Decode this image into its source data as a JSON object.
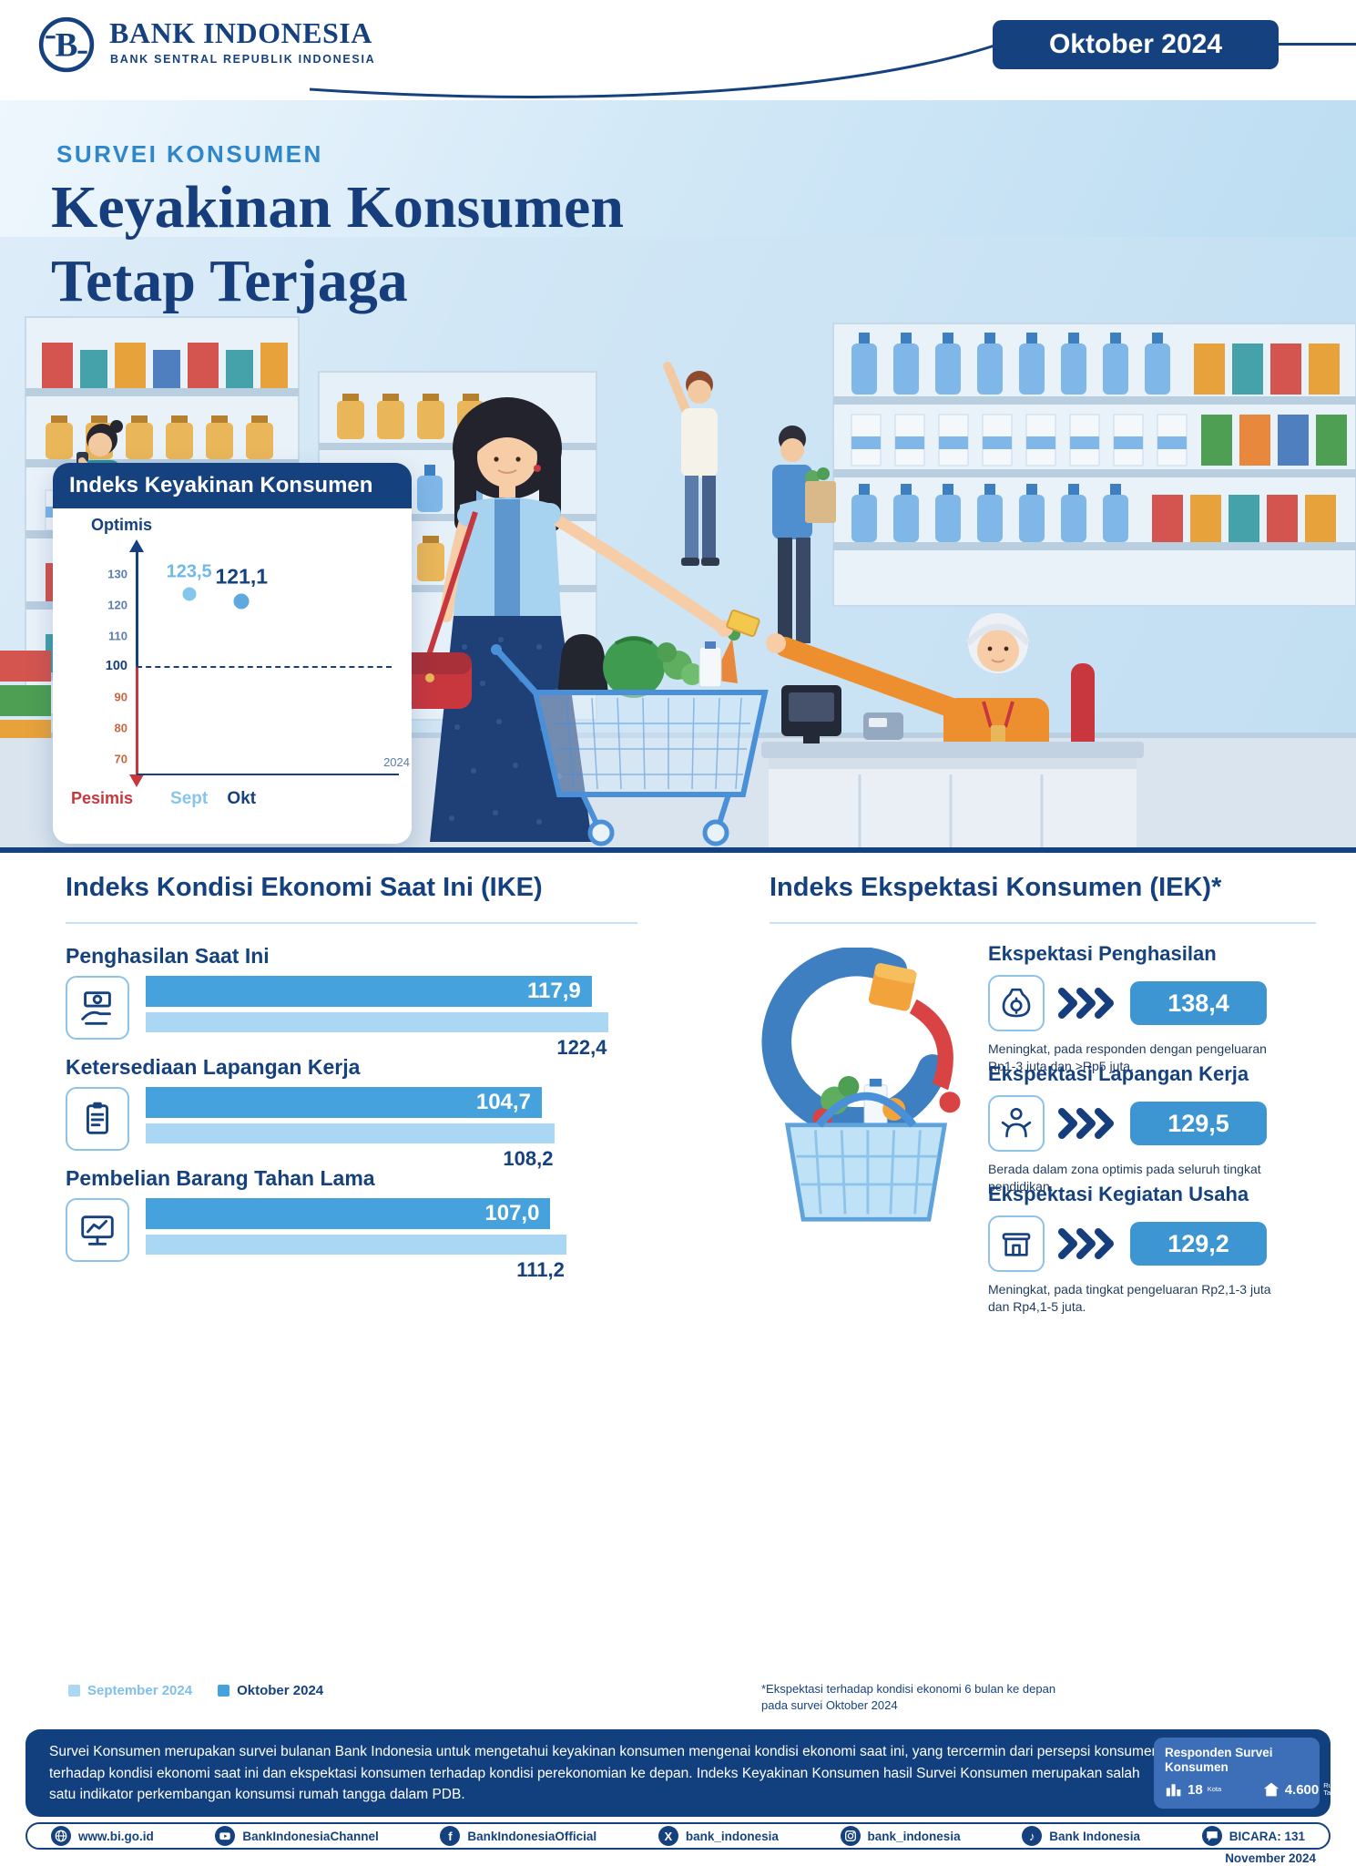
{
  "header": {
    "brand": "BANK INDONESIA",
    "brand_sub": "BANK SENTRAL REPUBLIK INDONESIA",
    "badge": "Oktober 2024"
  },
  "hero": {
    "kicker": "SURVEI KONSUMEN",
    "title_line1": "Keyakinan Konsumen",
    "title_line2": "Tetap Terjaga"
  },
  "chart_data": [
    {
      "type": "scatter",
      "title": "Indeks Keyakinan Konsumen",
      "x": [
        "Sept",
        "Okt"
      ],
      "values": [
        123.5,
        121.1
      ],
      "display": [
        "123,5",
        "121,1"
      ],
      "baseline": 100,
      "yticks": [
        130,
        120,
        110,
        100,
        90,
        80,
        70
      ],
      "ylim": [
        65,
        137
      ],
      "ylabel_top": "Optimis",
      "ylabel_bottom": "Pesimis",
      "xlabel": "2024",
      "grid": false,
      "legend_position": "none"
    },
    {
      "type": "bar",
      "orientation": "horizontal",
      "title": "Indeks Kondisi Ekonomi Saat Ini (IKE)",
      "categories": [
        "Penghasilan Saat Ini",
        "Ketersediaan Lapangan Kerja",
        "Pembelian Barang Tahan Lama"
      ],
      "series": [
        {
          "name": "September 2024",
          "values": [
            122.4,
            108.2,
            111.2
          ],
          "display": [
            "122,4",
            "108,2",
            "111,2"
          ],
          "color": "#A9D7F4"
        },
        {
          "name": "Oktober 2024",
          "values": [
            117.9,
            104.7,
            107.0
          ],
          "display": [
            "117,9",
            "104,7",
            "107,0"
          ],
          "color": "#45A2DD"
        }
      ],
      "xmax": 130
    },
    {
      "type": "bar",
      "title": "Indeks Ekspektasi Konsumen (IEK)*",
      "categories": [
        "Ekspektasi Penghasilan",
        "Ekspektasi Lapangan Kerja",
        "Ekspektasi Kegiatan Usaha"
      ],
      "values": [
        138.4,
        129.5,
        129.2
      ],
      "display": [
        "138,4",
        "129,5",
        "129,2"
      ],
      "descriptions": [
        "Meningkat, pada responden dengan pengeluaran Rp1-3 juta dan >Rp5 juta.",
        "Berada dalam zona optimis pada seluruh tingkat pendidikan.",
        "Meningkat, pada tingkat pengeluaran Rp2,1-3 juta dan Rp4,1-5 juta."
      ],
      "footnote": "*Ekspektasi terhadap kondisi ekonomi 6 bulan ke depan pada survei Oktober 2024"
    }
  ],
  "footer": {
    "paragraph": "Survei Konsumen merupakan survei bulanan Bank Indonesia untuk mengetahui keyakinan konsumen mengenai kondisi ekonomi saat ini, yang tercermin dari persepsi konsumen terhadap kondisi ekonomi saat ini dan ekspektasi konsumen terhadap kondisi perekonomian ke depan. Indeks Keyakinan Konsumen hasil Survei Konsumen merupakan salah satu indikator perkembangan konsumsi rumah tangga dalam PDB.",
    "badge_title": "Responden Survei Konsumen",
    "stats": [
      {
        "icon": "city-icon",
        "value": "18",
        "label": "Kota"
      },
      {
        "icon": "household-icon",
        "value": "4.600",
        "label": "Rumah Tangga"
      }
    ]
  },
  "social": {
    "items": [
      {
        "icon": "globe-icon",
        "label": "www.bi.go.id"
      },
      {
        "icon": "youtube-icon",
        "label": "BankIndonesiaChannel"
      },
      {
        "icon": "facebook-icon",
        "label": "BankIndonesiaOfficial"
      },
      {
        "icon": "x-icon",
        "label": "bank_indonesia"
      },
      {
        "icon": "instagram-icon",
        "label": "bank_indonesia"
      },
      {
        "icon": "tiktok-icon",
        "label": "Bank Indonesia"
      },
      {
        "icon": "bicara-icon",
        "label": "BICARA: 131"
      }
    ]
  },
  "issue_date": "November 2024",
  "colors": {
    "navy": "#16417F",
    "blue": "#3D96D2",
    "light_blue": "#A9D7F4",
    "red": "#C8373E",
    "orange": "#EE8F2F"
  }
}
